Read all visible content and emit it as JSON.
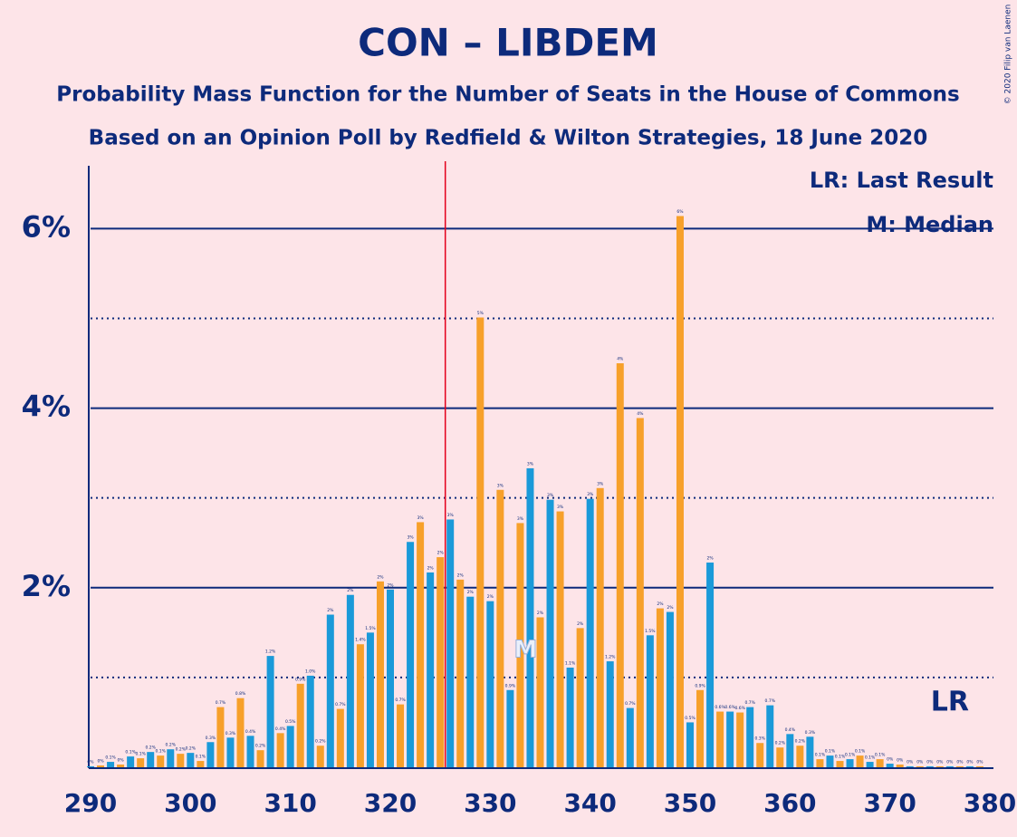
{
  "chart_data": {
    "type": "bar",
    "title": "CON – LIBDEM",
    "subtitle": "Probability Mass Function for the Number of Seats in the House of Commons",
    "subtitle2": "Based on an Opinion Poll by Redfield & Wilton Strategies, 18 June 2020",
    "credit": "© 2020 Filip van Laenen",
    "legend": [
      "LR: Last Result",
      "M: Median"
    ],
    "x": [
      290,
      291,
      292,
      293,
      294,
      295,
      296,
      297,
      298,
      299,
      300,
      301,
      302,
      303,
      304,
      305,
      306,
      307,
      308,
      309,
      310,
      311,
      312,
      313,
      314,
      315,
      316,
      317,
      318,
      319,
      320,
      321,
      322,
      323,
      324,
      325,
      326,
      327,
      328,
      329,
      330,
      331,
      332,
      333,
      334,
      335,
      336,
      337,
      338,
      339,
      340,
      341,
      342,
      343,
      344,
      345,
      346,
      347,
      348,
      349,
      350,
      351,
      352,
      353,
      354,
      355,
      356,
      357,
      358,
      359,
      360,
      361,
      362,
      363,
      364,
      365,
      366,
      367,
      368,
      369,
      370,
      371,
      372,
      373,
      374,
      375,
      376,
      377,
      378,
      379
    ],
    "values": [
      0.01,
      0.02,
      0.06,
      0.03,
      0.12,
      0.1,
      0.17,
      0.13,
      0.2,
      0.15,
      0.16,
      0.07,
      0.28,
      0.67,
      0.33,
      0.77,
      0.35,
      0.19,
      1.24,
      0.38,
      0.46,
      0.93,
      1.02,
      0.24,
      1.7,
      0.65,
      1.92,
      1.37,
      1.5,
      2.07,
      1.98,
      0.7,
      2.51,
      2.73,
      2.17,
      2.34,
      2.76,
      2.09,
      1.9,
      5.01,
      1.85,
      3.09,
      0.86,
      2.72,
      3.33,
      1.67,
      2.98,
      2.85,
      1.11,
      1.55,
      2.99,
      3.11,
      1.18,
      4.5,
      0.66,
      3.89,
      1.47,
      1.77,
      1.73,
      6.14,
      0.5,
      0.86,
      2.28,
      0.62,
      0.62,
      0.61,
      0.67,
      0.27,
      0.69,
      0.22,
      0.37,
      0.24,
      0.34,
      0.09,
      0.13,
      0.07,
      0.09,
      0.13,
      0.06,
      0.09,
      0.04,
      0.03,
      0.01,
      0.01,
      0.01,
      0.01,
      0.01,
      0.01,
      0.01,
      0.01
    ],
    "value_labels": [
      "0%",
      "0%",
      "0.1%",
      "0%",
      "0.1%",
      "0.1%",
      "0.2%",
      "0.1%",
      "0.2%",
      "0.2%",
      "0.2%",
      "0.1%",
      "0.3%",
      "0.7%",
      "0.3%",
      "0.8%",
      "0.4%",
      "0.2%",
      "1.2%",
      "0.4%",
      "0.5%",
      "0.9%",
      "1.0%",
      "0.2%",
      "2%",
      "0.7%",
      "2%",
      "1.4%",
      "1.5%",
      "2%",
      "2%",
      "0.7%",
      "3%",
      "3%",
      "2%",
      "2%",
      "3%",
      "2%",
      "2%",
      "5%",
      "2%",
      "3%",
      "0.9%",
      "3%",
      "3%",
      "2%",
      "3%",
      "3%",
      "1.1%",
      "2%",
      "3%",
      "3%",
      "1.2%",
      "4%",
      "0.7%",
      "4%",
      "1.5%",
      "2%",
      "2%",
      "6%",
      "0.5%",
      "0.9%",
      "2%",
      "0.6%",
      "0.6%",
      "0.6%",
      "0.7%",
      "0.3%",
      "0.7%",
      "0.2%",
      "0.4%",
      "0.2%",
      "0.3%",
      "0.1%",
      "0.1%",
      "0.1%",
      "0.1%",
      "0.1%",
      "0.1%",
      "0.1%",
      "0%",
      "0%",
      "0%",
      "0%",
      "0%",
      "0%",
      "0%",
      "0%",
      "0%",
      "0%"
    ],
    "colors": [
      "#1a9ad9",
      "#f7a02a"
    ],
    "xlim": [
      290,
      380
    ],
    "xticks": [
      290,
      300,
      310,
      320,
      330,
      340,
      350,
      360,
      370,
      380
    ],
    "ylim": [
      0,
      6.7
    ],
    "yticks": [
      {
        "value": 2,
        "label": "2%"
      },
      {
        "value": 4,
        "label": "4%"
      },
      {
        "value": 6,
        "label": "6%"
      }
    ],
    "minor_yticks": [
      1,
      3,
      5
    ],
    "majority": 326,
    "median": {
      "x": 334,
      "label": "M"
    },
    "last_result": {
      "x": 376,
      "label": "LR"
    }
  }
}
